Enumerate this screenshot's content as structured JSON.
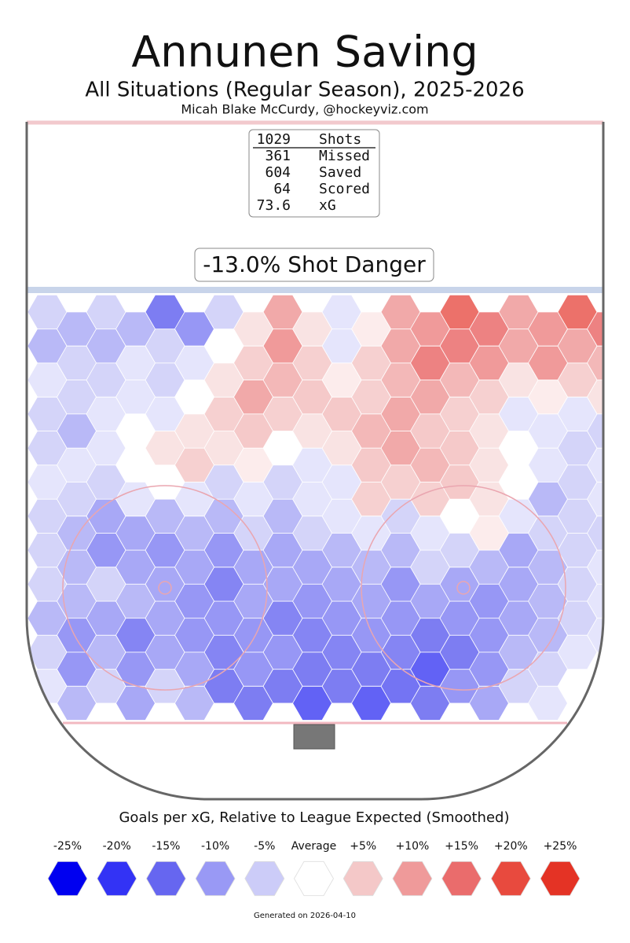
{
  "chart_data": {
    "type": "hexbin",
    "title": "Annunen Saving",
    "subtitle": "All Situations (Regular Season), 2025-2026",
    "author": "Micah Blake McCurdy, @hockeyviz.com",
    "stats": [
      [
        1029,
        "Shots"
      ],
      [
        361,
        "Missed"
      ],
      [
        604,
        "Saved"
      ],
      [
        64,
        "Scored"
      ],
      [
        73.6,
        "xG"
      ]
    ],
    "danger": "-13.0% Shot Danger",
    "legend_title": "Goals per xG, Relative to League Expected (Smoothed)",
    "legend": [
      {
        "value": -25,
        "label": "-25%",
        "color": "#0000f0"
      },
      {
        "value": -20,
        "label": "-20%",
        "color": "#3333f5"
      },
      {
        "value": -15,
        "label": "-15%",
        "color": "#6666f0"
      },
      {
        "value": -10,
        "label": "-10%",
        "color": "#9999f5"
      },
      {
        "value": -5,
        "label": "-5%",
        "color": "#ccccf8"
      },
      {
        "value": 0,
        "label": "Average",
        "color": "#ffffff"
      },
      {
        "value": 5,
        "label": "+5%",
        "color": "#f4c8c8"
      },
      {
        "value": 10,
        "label": "+10%",
        "color": "#ef9a9a"
      },
      {
        "value": 15,
        "label": "+15%",
        "color": "#ea6c6c"
      },
      {
        "value": 20,
        "label": "+20%",
        "color": "#e84a3e"
      },
      {
        "value": 25,
        "label": "+25%",
        "color": "#e43325"
      }
    ],
    "footer": "Generated on 2026-04-10",
    "values": [
      [
        -5,
        -8,
        -5,
        -8,
        -15,
        -12,
        -5,
        3,
        10,
        3,
        -3,
        2,
        10,
        12,
        18,
        15,
        10,
        12,
        18,
        15
      ],
      [
        -8,
        -5,
        -8,
        -3,
        -5,
        -3,
        0,
        5,
        12,
        5,
        -3,
        5,
        10,
        15,
        15,
        12,
        10,
        12,
        10,
        8
      ],
      [
        -3,
        -5,
        -5,
        -3,
        -5,
        0,
        3,
        10,
        8,
        6,
        2,
        5,
        8,
        10,
        8,
        5,
        3,
        2,
        5,
        3
      ],
      [
        -5,
        -8,
        -3,
        0,
        -3,
        3,
        5,
        6,
        5,
        3,
        6,
        8,
        10,
        6,
        5,
        3,
        -3,
        -3,
        -3,
        -5
      ],
      [
        -5,
        -3,
        -3,
        0,
        3,
        5,
        3,
        2,
        0,
        -3,
        3,
        6,
        10,
        8,
        6,
        3,
        0,
        -3,
        -5,
        -3
      ],
      [
        -3,
        -5,
        -5,
        -3,
        0,
        -3,
        -5,
        -3,
        -5,
        -3,
        -3,
        5,
        5,
        5,
        6,
        3,
        0,
        -8,
        -5,
        -3
      ],
      [
        -5,
        -8,
        -10,
        -10,
        -8,
        -8,
        -8,
        -5,
        -8,
        -5,
        -3,
        -3,
        -5,
        -3,
        0,
        2,
        -3,
        -5,
        -5,
        -5
      ],
      [
        -5,
        -8,
        -12,
        -10,
        -12,
        -10,
        -12,
        -10,
        -10,
        -10,
        -8,
        -8,
        -8,
        -5,
        -5,
        -8,
        -10,
        -8,
        -5,
        -3
      ],
      [
        -5,
        -8,
        -5,
        -8,
        -10,
        -12,
        -14,
        -10,
        -10,
        -12,
        -10,
        -10,
        -12,
        -10,
        -10,
        -12,
        -10,
        -8,
        -5,
        -3
      ],
      [
        -8,
        -12,
        -10,
        -14,
        -10,
        -12,
        -12,
        -12,
        -14,
        -14,
        -12,
        -12,
        -12,
        -15,
        -12,
        -12,
        -10,
        -8,
        -5,
        -3
      ],
      [
        -5,
        -12,
        -8,
        -12,
        -10,
        -10,
        -14,
        -12,
        -12,
        -15,
        -14,
        -15,
        -14,
        -18,
        -15,
        -12,
        -8,
        -5,
        -3,
        0
      ],
      [
        -3,
        -8,
        -5,
        -10,
        -5,
        -8,
        -15,
        -15,
        -15,
        -18,
        -15,
        -18,
        -16,
        -15,
        -12,
        -10,
        -5,
        -3,
        0,
        0
      ]
    ]
  }
}
